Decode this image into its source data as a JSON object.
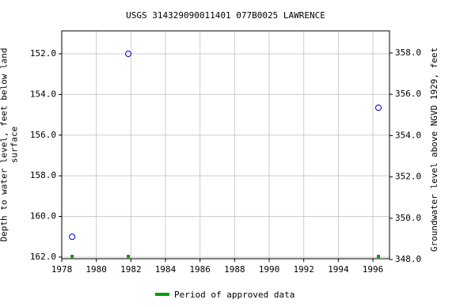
{
  "chart_data": {
    "type": "scatter",
    "title": "USGS 314329090011401 077B0025  LAWRENCE",
    "y_label": "Depth to water level, feet below land surface",
    "y2_label": "Groundwater level above NGVD 1929, feet",
    "xlim": [
      1978,
      1996.96
    ],
    "xticks": [
      1978,
      1980,
      1982,
      1984,
      1986,
      1988,
      1990,
      1992,
      1994,
      1996
    ],
    "ylim": [
      150.87,
      162.08
    ],
    "y_inverted": true,
    "yticks": [
      {
        "value": 152,
        "label": "152.0"
      },
      {
        "value": 154,
        "label": "154.0"
      },
      {
        "value": 156,
        "label": "156.0"
      },
      {
        "value": 158,
        "label": "158.0"
      },
      {
        "value": 160,
        "label": "160.0"
      },
      {
        "value": 162,
        "label": "162.0"
      }
    ],
    "y2lim": [
      348.04,
      359.07
    ],
    "y2ticks": [
      {
        "value": 348,
        "label": "348.0"
      },
      {
        "value": 350,
        "label": "350.0"
      },
      {
        "value": 352,
        "label": "352.0"
      },
      {
        "value": 354,
        "label": "354.0"
      },
      {
        "value": 356,
        "label": "356.0"
      },
      {
        "value": 358,
        "label": "358.0"
      }
    ],
    "grid": true,
    "series": [
      {
        "color": "#0000cc",
        "x": [
          1978.6,
          1981.85,
          1996.32
        ],
        "values": [
          161.0,
          152.0,
          154.65
        ]
      }
    ],
    "approved": {
      "name": "Period of approved data",
      "color": "#00a000",
      "x": [
        1978.6,
        1981.85,
        1996.32
      ]
    }
  }
}
